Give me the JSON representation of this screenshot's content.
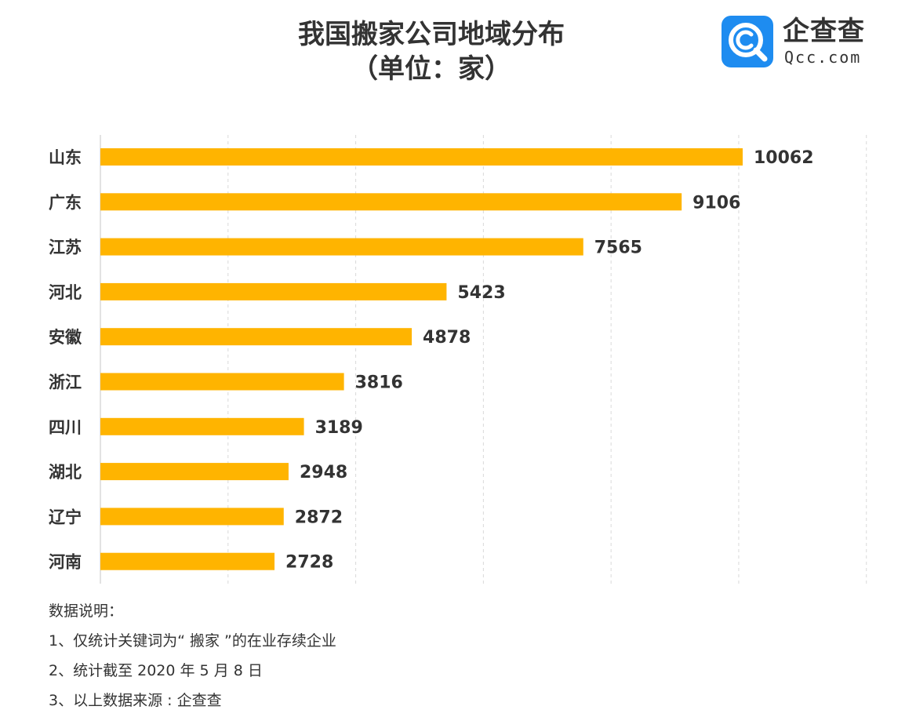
{
  "header": {
    "title_line1": "我国搬家公司地域分布",
    "title_line2": "（单位：家）"
  },
  "logo": {
    "name": "企查查",
    "domain": "Qcc.com",
    "icon": "qcc-magnifier-icon",
    "color": "#1e8cf0"
  },
  "colors": {
    "bar": "#FFB400",
    "grid": "#d9d9d9",
    "text": "#333333"
  },
  "chart_data": {
    "type": "bar",
    "orientation": "horizontal",
    "categories": [
      "山东",
      "广东",
      "江苏",
      "河北",
      "安徽",
      "浙江",
      "四川",
      "湖北",
      "辽宁",
      "河南"
    ],
    "values": [
      10062,
      9106,
      7565,
      5423,
      4878,
      3816,
      3189,
      2948,
      2872,
      2728
    ],
    "title": "我国搬家公司地域分布（单位：家）",
    "xlim": [
      0,
      12000
    ],
    "grid": "vertical dashed",
    "data_labels": true
  },
  "notes": {
    "heading": "数据说明：",
    "items": [
      "1、仅统计关键词为“ 搬家 ”的在业存续企业",
      "2、统计截至 2020 年 5 月 8 日",
      "3、以上数据来源 : 企查查"
    ]
  }
}
